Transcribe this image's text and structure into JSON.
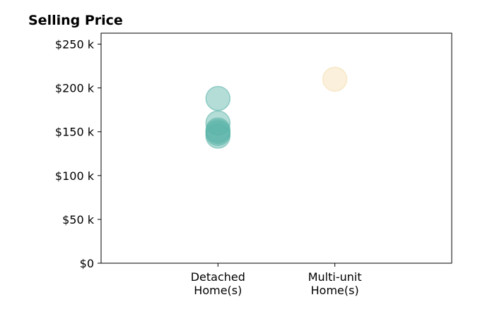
{
  "chart_data": {
    "type": "scatter",
    "title": "Selling Price",
    "xlabel": "",
    "ylabel": "",
    "categories": [
      [
        "Detached",
        "Home(s)"
      ],
      [
        "Multi-unit",
        "Home(s)"
      ]
    ],
    "y_ticks": [
      0,
      50000,
      100000,
      150000,
      200000,
      250000
    ],
    "y_tick_labels": [
      "$0",
      "$50 k",
      "$100 k",
      "$150 k",
      "$200 k",
      "$250 k"
    ],
    "ylim": [
      0,
      262500
    ],
    "xlim": [
      -1,
      2
    ],
    "grid": false,
    "series": [
      {
        "category_index": 0,
        "color": "#5ab4a8",
        "values": [
          188000,
          160000,
          152000,
          150000,
          148000,
          145000
        ]
      },
      {
        "category_index": 1,
        "color": "#f5deb0",
        "values": [
          210000
        ]
      }
    ]
  }
}
